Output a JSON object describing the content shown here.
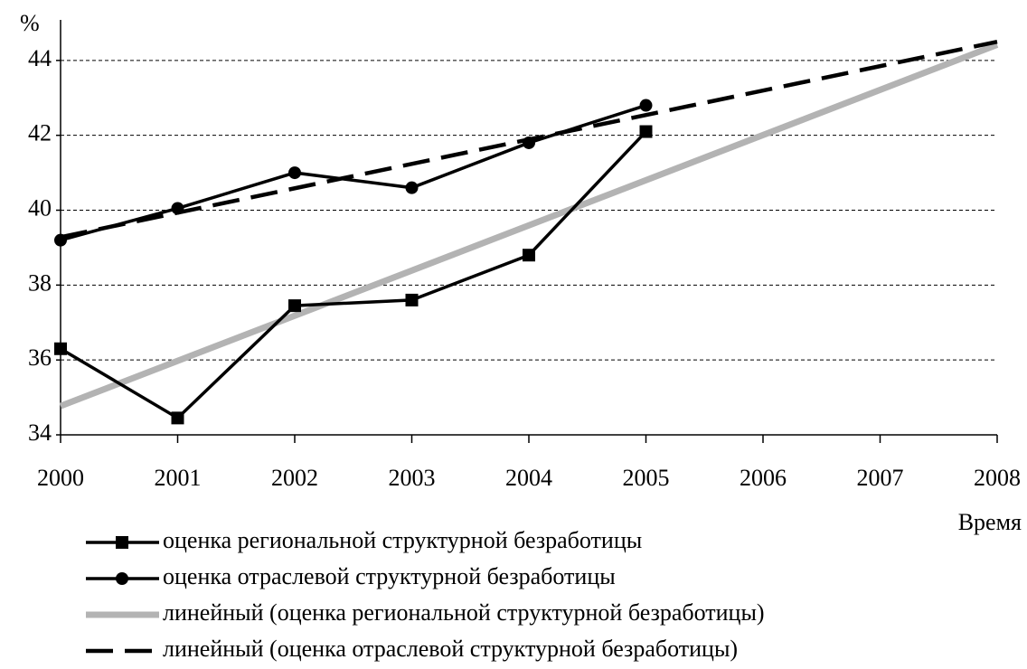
{
  "chart_data": {
    "type": "line",
    "y_label": "%",
    "x_label": "Время",
    "xlim": [
      2000,
      2008
    ],
    "xticks": [
      2000,
      2001,
      2002,
      2003,
      2004,
      2005,
      2006,
      2007,
      2008
    ],
    "ylim": [
      34,
      44.6
    ],
    "yticks": [
      34,
      36,
      38,
      40,
      42,
      44
    ],
    "grid": true,
    "series": [
      {
        "name": "оценка региональной структурной безработицы",
        "color": "#000000",
        "marker": "square",
        "style": "solid",
        "x": [
          2000,
          2001,
          2002,
          2003,
          2004,
          2005
        ],
        "values": [
          36.3,
          34.45,
          37.45,
          37.6,
          38.8,
          42.1
        ]
      },
      {
        "name": "оценка отраслевой структурной безработицы",
        "color": "#000000",
        "marker": "circle",
        "style": "solid",
        "x": [
          2000,
          2001,
          2002,
          2003,
          2004,
          2005
        ],
        "values": [
          39.2,
          40.05,
          41.0,
          40.6,
          41.8,
          42.8
        ]
      },
      {
        "name": "линейный (оценка региональной структурной безработицы)",
        "color": "#b3b3b3",
        "style": "thick",
        "x": [
          2000,
          2008
        ],
        "values": [
          34.77,
          44.42
        ]
      },
      {
        "name": "линейный (оценка отраслевой структурной безработицы)",
        "color": "#000000",
        "style": "dashed",
        "x": [
          2000,
          2008
        ],
        "values": [
          39.28,
          44.5
        ]
      }
    ]
  }
}
